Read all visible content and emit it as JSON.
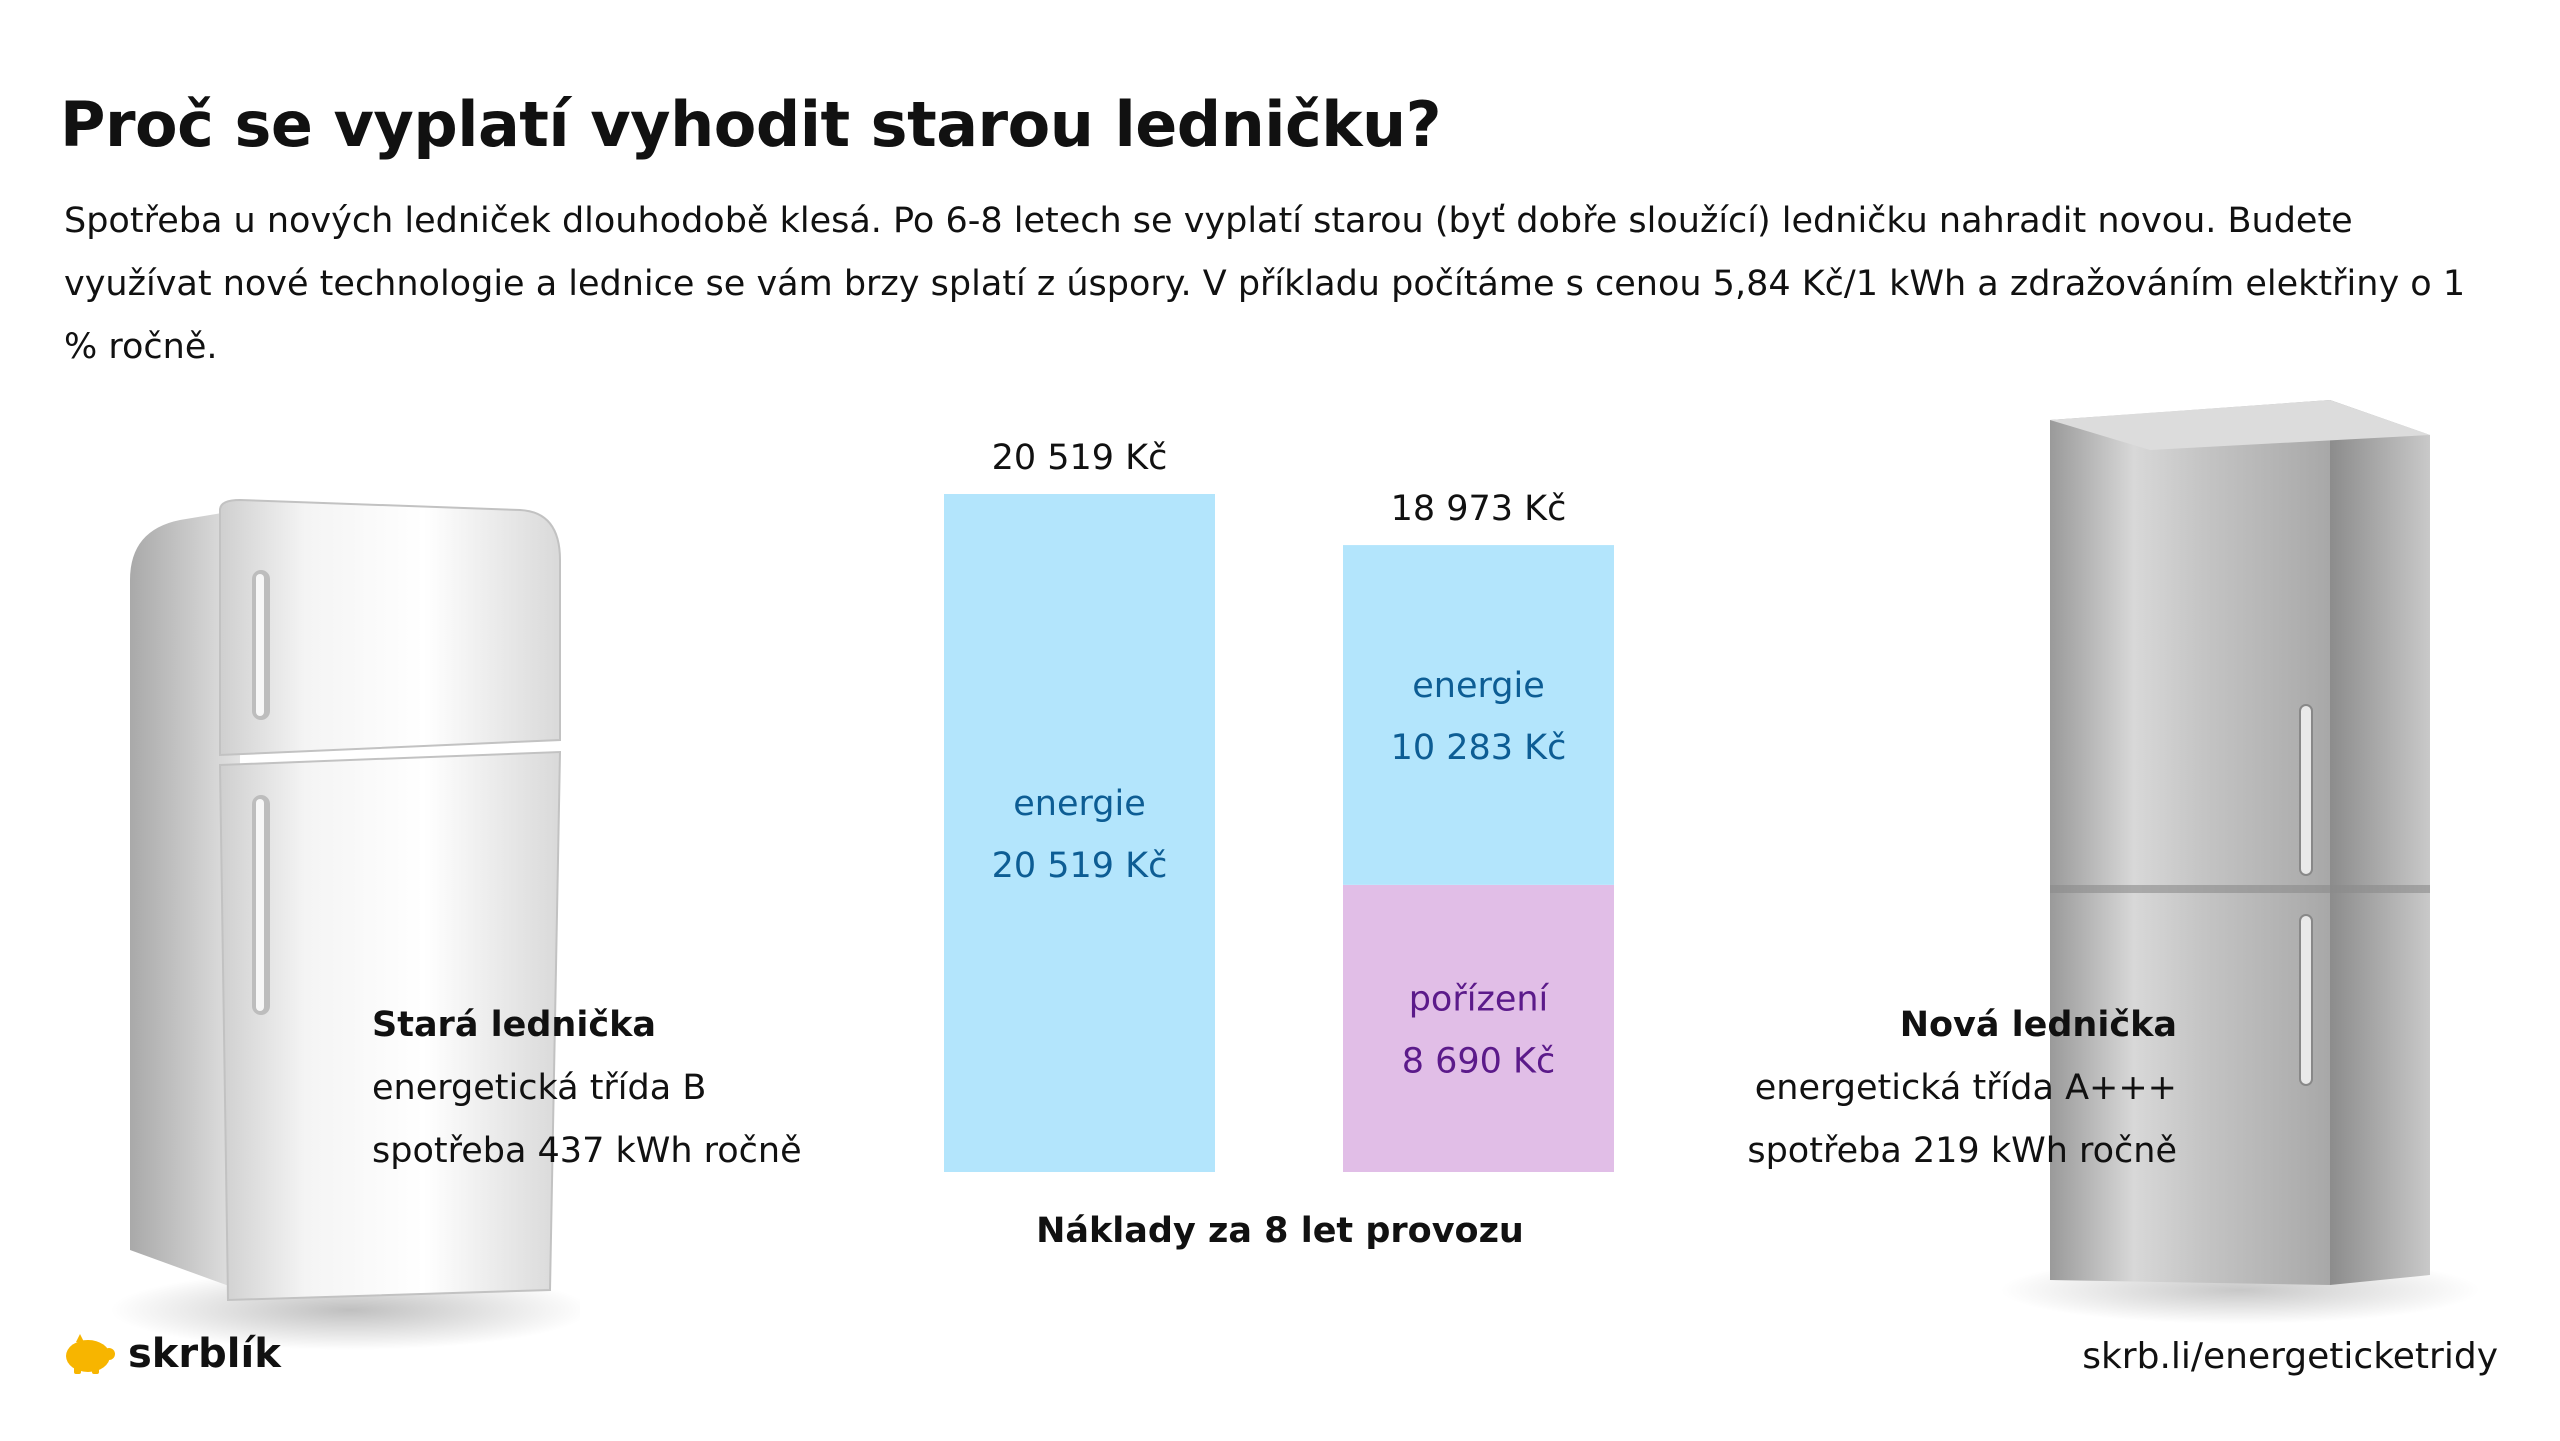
{
  "title": "Proč se vyplatí vyhodit starou ledničku?",
  "subtitle": "Spotřeba u nových ledniček dlouhodobě klesá. Po 6-8 letech se vyplatí starou (byť dobře sloužící) ledničku nahradit novou. Budete využívat nové technologie a lednice se vám brzy splatí z úspory. V příkladu počítáme s cenou 5,84 Kč/1 kWh a zdražováním elektřiny o 1 % ročně.",
  "old_fridge": {
    "name": "Stará lednička",
    "class": "energetická třída B",
    "consumption": "spotřeba 437 kWh ročně",
    "icon": "retro-fridge-icon"
  },
  "new_fridge": {
    "name": "Nová lednička",
    "class": "energetická třída A+++",
    "consumption": "spotřeba 219 kWh ročně",
    "icon": "steel-fridge-icon"
  },
  "brand": {
    "name": "skrblík",
    "icon": "piggy-bank-icon"
  },
  "link": "skrb.li/energeticketridy",
  "colors": {
    "energie": "#b3e5fc",
    "energie_text": "#0d5d94",
    "porizeni": "#e1bee7",
    "porizeni_text": "#5b1a8a"
  },
  "chart_data": {
    "type": "bar",
    "stacked": true,
    "xlabel": "Náklady za 8 let provozu",
    "categories": [
      "Stará lednička",
      "Nová lednička"
    ],
    "totals": [
      "20 519 Kč",
      "18 973 Kč"
    ],
    "total_values": [
      20519,
      18973
    ],
    "series": [
      {
        "name": "pořízení",
        "values": [
          0,
          8690
        ],
        "labels": [
          "",
          "8 690 Kč"
        ]
      },
      {
        "name": "energie",
        "values": [
          20519,
          10283
        ],
        "labels": [
          "20 519 Kč",
          "10 283 Kč"
        ]
      }
    ],
    "ylim": [
      0,
      20519
    ]
  }
}
